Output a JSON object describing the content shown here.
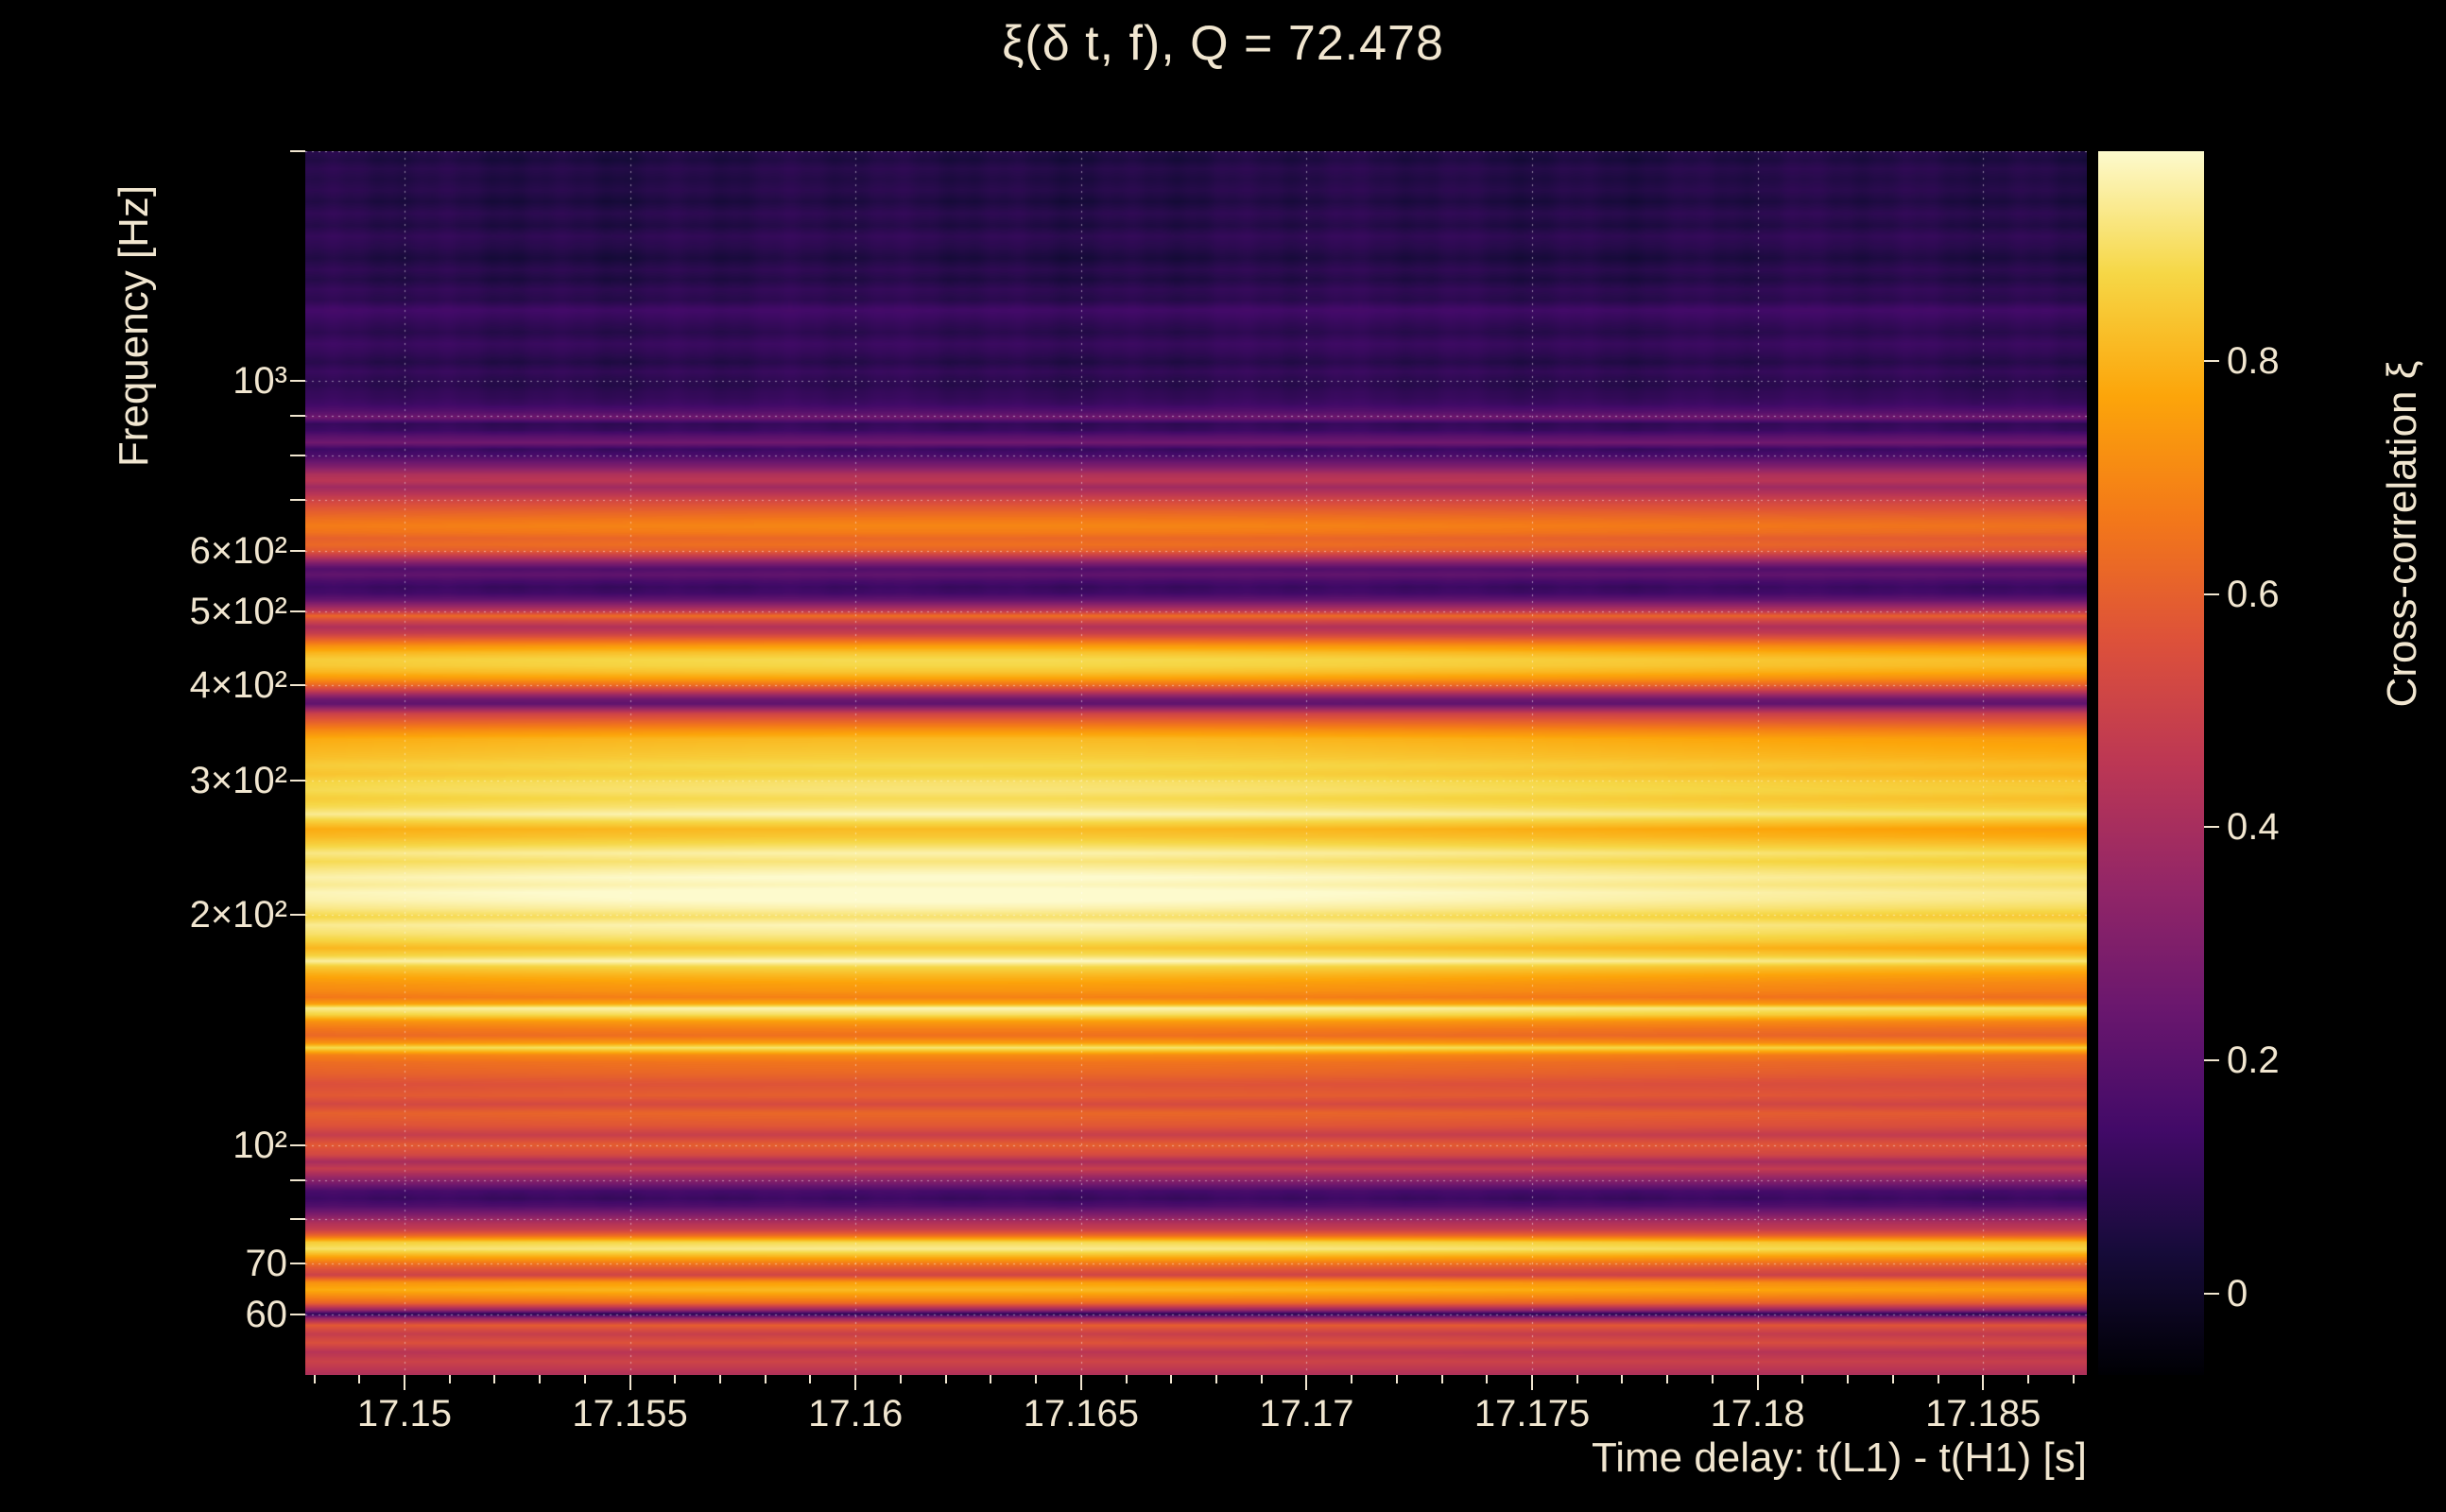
{
  "page": {
    "background": "#000000",
    "text_color": "#f1e6d0",
    "grid_color": "rgba(255,255,255,0.5)"
  },
  "chart_data": {
    "type": "heatmap",
    "title": "ξ(δ t, f), Q = 72.478",
    "xlabel": "Time delay: t(L1) - t(H1) [s]",
    "ylabel": "Frequency [Hz]",
    "colorbar_label": "Cross-correlation ξ",
    "x_range": [
      17.1478,
      17.1873
    ],
    "y_range_hz": [
      50,
      2000
    ],
    "y_scale": "log",
    "color_range": [
      -0.07,
      0.98
    ],
    "grid": "dotted",
    "legend_position": "right-colorbar",
    "x_ticks": [
      {
        "t": 17.15,
        "label": "17.15"
      },
      {
        "t": 17.155,
        "label": "17.155"
      },
      {
        "t": 17.16,
        "label": "17.16"
      },
      {
        "t": 17.165,
        "label": "17.165"
      },
      {
        "t": 17.17,
        "label": "17.17"
      },
      {
        "t": 17.175,
        "label": "17.175"
      },
      {
        "t": 17.18,
        "label": "17.18"
      },
      {
        "t": 17.185,
        "label": "17.185"
      }
    ],
    "x_minor_tick_step": 0.001,
    "y_ticks": [
      {
        "f": 60,
        "label": "60"
      },
      {
        "f": 70,
        "label": "70"
      },
      {
        "f": 80,
        "label": ""
      },
      {
        "f": 90,
        "label": ""
      },
      {
        "f": 100,
        "label": "10²"
      },
      {
        "f": 200,
        "label": "2×10²"
      },
      {
        "f": 300,
        "label": "3×10²"
      },
      {
        "f": 400,
        "label": "4×10²"
      },
      {
        "f": 500,
        "label": "5×10²"
      },
      {
        "f": 600,
        "label": "6×10²"
      },
      {
        "f": 700,
        "label": ""
      },
      {
        "f": 800,
        "label": ""
      },
      {
        "f": 900,
        "label": ""
      },
      {
        "f": 1000,
        "label": "10³"
      },
      {
        "f": 2000,
        "label": ""
      }
    ],
    "colorbar_ticks": [
      {
        "v": 0,
        "label": "0"
      },
      {
        "v": 0.2,
        "label": "0.2"
      },
      {
        "v": 0.4,
        "label": "0.4"
      },
      {
        "v": 0.6,
        "label": "0.6"
      },
      {
        "v": 0.8,
        "label": "0.8"
      }
    ],
    "colormap": "inferno",
    "colormap_stops": [
      [
        0,
        0,
        4
      ],
      [
        22,
        11,
        57
      ],
      [
        66,
        10,
        104
      ],
      [
        106,
        23,
        110
      ],
      [
        147,
        38,
        103
      ],
      [
        188,
        55,
        84
      ],
      [
        221,
        81,
        58
      ],
      [
        243,
        120,
        25
      ],
      [
        252,
        165,
        10
      ],
      [
        246,
        215,
        70
      ],
      [
        253,
        250,
        205
      ]
    ],
    "time_modulation": {
      "center": 17.162,
      "sigma": 0.014,
      "amplitude": 0.04
    },
    "frequency_profile": [
      [
        50,
        0.42
      ],
      [
        52,
        0.5
      ],
      [
        53.5,
        0.44
      ],
      [
        55,
        0.55
      ],
      [
        56.5,
        0.48
      ],
      [
        58,
        0.58
      ],
      [
        59.3,
        0.35
      ],
      [
        60,
        0.08
      ],
      [
        60.7,
        0.35
      ],
      [
        62,
        0.6
      ],
      [
        63,
        0.68
      ],
      [
        64.5,
        0.78
      ],
      [
        66,
        0.72
      ],
      [
        67.5,
        0.5
      ],
      [
        69,
        0.58
      ],
      [
        70,
        0.65
      ],
      [
        71.5,
        0.78
      ],
      [
        73,
        0.9
      ],
      [
        74.5,
        0.85
      ],
      [
        76,
        0.62
      ],
      [
        77.5,
        0.48
      ],
      [
        79,
        0.42
      ],
      [
        81,
        0.3
      ],
      [
        83,
        0.18
      ],
      [
        85,
        0.12
      ],
      [
        87,
        0.15
      ],
      [
        89,
        0.28
      ],
      [
        91,
        0.38
      ],
      [
        93,
        0.48
      ],
      [
        95,
        0.4
      ],
      [
        97,
        0.52
      ],
      [
        100,
        0.58
      ],
      [
        103,
        0.48
      ],
      [
        106,
        0.56
      ],
      [
        110,
        0.6
      ],
      [
        113,
        0.52
      ],
      [
        116,
        0.58
      ],
      [
        120,
        0.55
      ],
      [
        124,
        0.6
      ],
      [
        128,
        0.63
      ],
      [
        131,
        0.68
      ],
      [
        134,
        0.88
      ],
      [
        136,
        0.72
      ],
      [
        139,
        0.62
      ],
      [
        142,
        0.66
      ],
      [
        145,
        0.72
      ],
      [
        148,
        0.86
      ],
      [
        151,
        0.93
      ],
      [
        153,
        0.75
      ],
      [
        156,
        0.66
      ],
      [
        159,
        0.7
      ],
      [
        163,
        0.73
      ],
      [
        167,
        0.78
      ],
      [
        171,
        0.84
      ],
      [
        174,
        0.94
      ],
      [
        177,
        0.86
      ],
      [
        181,
        0.8
      ],
      [
        185,
        0.86
      ],
      [
        189,
        0.9
      ],
      [
        194,
        0.93
      ],
      [
        199,
        0.87
      ],
      [
        204,
        0.92
      ],
      [
        209,
        0.95
      ],
      [
        214,
        0.96
      ],
      [
        219,
        0.93
      ],
      [
        224,
        0.95
      ],
      [
        229,
        0.92
      ],
      [
        235,
        0.88
      ],
      [
        241,
        0.92
      ],
      [
        247,
        0.86
      ],
      [
        253,
        0.81
      ],
      [
        259,
        0.78
      ],
      [
        265,
        0.85
      ],
      [
        271,
        0.93
      ],
      [
        277,
        0.88
      ],
      [
        284,
        0.85
      ],
      [
        291,
        0.88
      ],
      [
        298,
        0.87
      ],
      [
        306,
        0.83
      ],
      [
        314,
        0.85
      ],
      [
        322,
        0.82
      ],
      [
        331,
        0.8
      ],
      [
        340,
        0.78
      ],
      [
        349,
        0.7
      ],
      [
        358,
        0.6
      ],
      [
        367,
        0.5
      ],
      [
        373,
        0.35
      ],
      [
        378,
        0.22
      ],
      [
        383,
        0.25
      ],
      [
        389,
        0.38
      ],
      [
        395,
        0.52
      ],
      [
        401,
        0.63
      ],
      [
        408,
        0.73
      ],
      [
        416,
        0.8
      ],
      [
        424,
        0.84
      ],
      [
        432,
        0.85
      ],
      [
        441,
        0.8
      ],
      [
        450,
        0.72
      ],
      [
        459,
        0.6
      ],
      [
        468,
        0.48
      ],
      [
        477,
        0.42
      ],
      [
        486,
        0.52
      ],
      [
        493,
        0.62
      ],
      [
        500,
        0.46
      ],
      [
        509,
        0.34
      ],
      [
        518,
        0.22
      ],
      [
        528,
        0.14
      ],
      [
        538,
        0.12
      ],
      [
        548,
        0.16
      ],
      [
        558,
        0.22
      ],
      [
        568,
        0.18
      ],
      [
        578,
        0.3
      ],
      [
        589,
        0.45
      ],
      [
        600,
        0.58
      ],
      [
        611,
        0.62
      ],
      [
        623,
        0.6
      ],
      [
        635,
        0.65
      ],
      [
        647,
        0.67
      ],
      [
        660,
        0.64
      ],
      [
        673,
        0.6
      ],
      [
        686,
        0.56
      ],
      [
        699,
        0.51
      ],
      [
        713,
        0.44
      ],
      [
        727,
        0.38
      ],
      [
        741,
        0.45
      ],
      [
        755,
        0.42
      ],
      [
        770,
        0.32
      ],
      [
        785,
        0.24
      ],
      [
        800,
        0.16
      ],
      [
        815,
        0.12
      ],
      [
        831,
        0.26
      ],
      [
        847,
        0.2
      ],
      [
        863,
        0.12
      ],
      [
        880,
        0.1
      ],
      [
        897,
        0.26
      ],
      [
        915,
        0.18
      ],
      [
        933,
        0.13
      ],
      [
        951,
        0.11
      ],
      [
        970,
        0.1
      ],
      [
        989,
        0.08
      ],
      [
        1008,
        0.09
      ],
      [
        1030,
        0.11
      ],
      [
        1060,
        0.07
      ],
      [
        1090,
        0.1
      ],
      [
        1120,
        0.12
      ],
      [
        1160,
        0.08
      ],
      [
        1200,
        0.11
      ],
      [
        1240,
        0.14
      ],
      [
        1280,
        0.08
      ],
      [
        1320,
        0.1
      ],
      [
        1360,
        0.06
      ],
      [
        1400,
        0.09
      ],
      [
        1450,
        0.05
      ],
      [
        1500,
        0.08
      ],
      [
        1550,
        0.1
      ],
      [
        1600,
        0.06
      ],
      [
        1660,
        0.09
      ],
      [
        1720,
        0.05
      ],
      [
        1780,
        0.08
      ],
      [
        1840,
        0.06
      ],
      [
        1900,
        0.08
      ],
      [
        1950,
        0.05
      ],
      [
        2000,
        0.07
      ]
    ]
  }
}
